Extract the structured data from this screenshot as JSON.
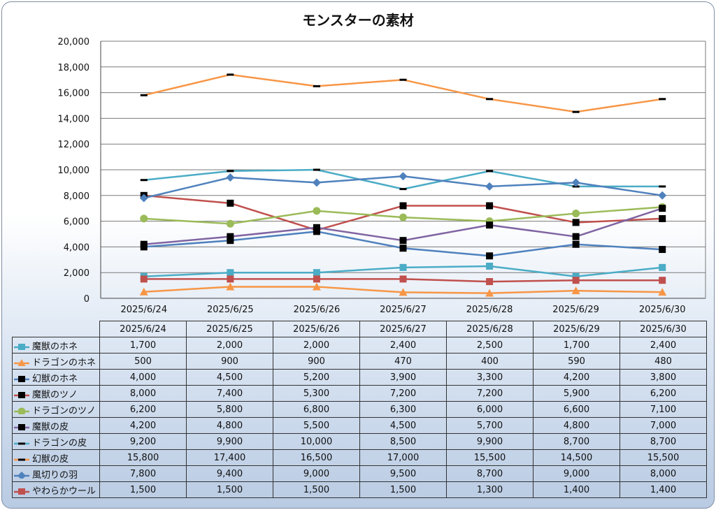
{
  "chart_data": {
    "type": "line",
    "title": "モンスターの素材",
    "xlabel": "",
    "ylabel": "",
    "ylim": [
      0,
      20000
    ],
    "yticks": [
      "0",
      "2,000",
      "4,000",
      "6,000",
      "8,000",
      "10,000",
      "12,000",
      "14,000",
      "16,000",
      "18,000",
      "20,000"
    ],
    "grid": true,
    "legend": "data-table",
    "categories": [
      "2025/6/24",
      "2025/6/25",
      "2025/6/26",
      "2025/6/27",
      "2025/6/28",
      "2025/6/29",
      "2025/6/30"
    ],
    "series": [
      {
        "name": "魔獣のホネ",
        "color": "#4bacc6",
        "marker": "square",
        "values": [
          1700,
          2000,
          2000,
          2400,
          2500,
          1700,
          2400
        ],
        "labels": [
          "1,700",
          "2,000",
          "2,000",
          "2,400",
          "2,500",
          "1,700",
          "2,400"
        ]
      },
      {
        "name": "ドラゴンのホネ",
        "color": "#f79646",
        "marker": "triangle",
        "values": [
          500,
          900,
          900,
          470,
          400,
          590,
          480
        ],
        "labels": [
          "500",
          "900",
          "900",
          "470",
          "400",
          "590",
          "480"
        ]
      },
      {
        "name": "幻獣のホネ",
        "color": "#4f81bd",
        "marker": "black-square",
        "values": [
          4000,
          4500,
          5200,
          3900,
          3300,
          4200,
          3800
        ],
        "labels": [
          "4,000",
          "4,500",
          "5,200",
          "3,900",
          "3,300",
          "4,200",
          "3,800"
        ]
      },
      {
        "name": "魔獣のツノ",
        "color": "#c0504d",
        "marker": "black-square",
        "values": [
          8000,
          7400,
          5300,
          7200,
          7200,
          5900,
          6200
        ],
        "labels": [
          "8,000",
          "7,400",
          "5,300",
          "7,200",
          "7,200",
          "5,900",
          "6,200"
        ]
      },
      {
        "name": "ドラゴンのツノ",
        "color": "#9bbb59",
        "marker": "circle",
        "values": [
          6200,
          5800,
          6800,
          6300,
          6000,
          6600,
          7100
        ],
        "labels": [
          "6,200",
          "5,800",
          "6,800",
          "6,300",
          "6,000",
          "6,600",
          "7,100"
        ]
      },
      {
        "name": "魔獣の皮",
        "color": "#8064a2",
        "marker": "black-square",
        "values": [
          4200,
          4800,
          5500,
          4500,
          5700,
          4800,
          7000
        ],
        "labels": [
          "4,200",
          "4,800",
          "5,500",
          "4,500",
          "5,700",
          "4,800",
          "7,000"
        ]
      },
      {
        "name": "ドラゴンの皮",
        "color": "#4bacc6",
        "marker": "dash",
        "values": [
          9200,
          9900,
          10000,
          8500,
          9900,
          8700,
          8700
        ],
        "labels": [
          "9,200",
          "9,900",
          "10,000",
          "8,500",
          "9,900",
          "8,700",
          "8,700"
        ]
      },
      {
        "name": "幻獣の皮",
        "color": "#f79646",
        "marker": "dash",
        "values": [
          15800,
          17400,
          16500,
          17000,
          15500,
          14500,
          15500
        ],
        "labels": [
          "15,800",
          "17,400",
          "16,500",
          "17,000",
          "15,500",
          "14,500",
          "15,500"
        ]
      },
      {
        "name": "風切りの羽",
        "color": "#4f81bd",
        "marker": "diamond",
        "values": [
          7800,
          9400,
          9000,
          9500,
          8700,
          9000,
          8000
        ],
        "labels": [
          "7,800",
          "9,400",
          "9,000",
          "9,500",
          "8,700",
          "9,000",
          "8,000"
        ]
      },
      {
        "name": "やわらかウール",
        "color": "#c0504d",
        "marker": "square",
        "values": [
          1500,
          1500,
          1500,
          1500,
          1300,
          1400,
          1400
        ],
        "labels": [
          "1,500",
          "1,500",
          "1,500",
          "1,500",
          "1,300",
          "1,400",
          "1,400"
        ]
      }
    ]
  }
}
